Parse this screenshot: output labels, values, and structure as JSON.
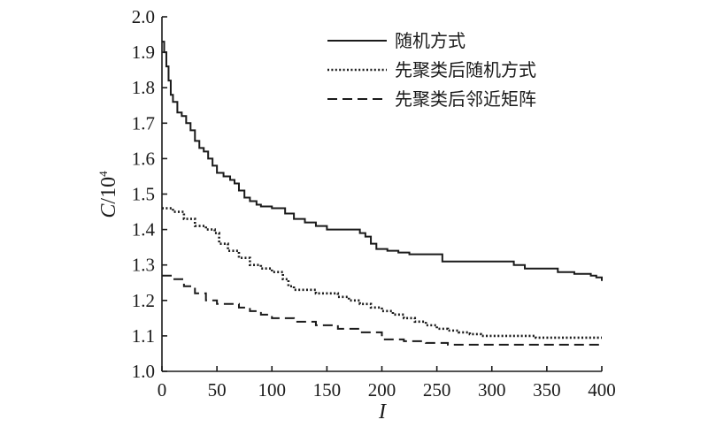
{
  "chart_data": {
    "type": "line",
    "ylabel": {
      "var": "C",
      "unit": "/10",
      "exp": "4"
    },
    "xlabel": "I",
    "xlim": [
      0,
      400
    ],
    "ylim": [
      1.0,
      2.0
    ],
    "x_ticks": [
      "0",
      "50",
      "100",
      "150",
      "200",
      "250",
      "300",
      "350",
      "400"
    ],
    "y_ticks": [
      "1.0",
      "1.1",
      "1.2",
      "1.3",
      "1.4",
      "1.5",
      "1.6",
      "1.7",
      "1.8",
      "1.9",
      "2.0"
    ],
    "grid": false,
    "legend_position": "top-right",
    "series": [
      {
        "name": "随机方式",
        "style": "solid",
        "color": "#1a1a1a",
        "points": [
          [
            0,
            1.93
          ],
          [
            2,
            1.9
          ],
          [
            4,
            1.86
          ],
          [
            6,
            1.82
          ],
          [
            8,
            1.78
          ],
          [
            10,
            1.76
          ],
          [
            14,
            1.73
          ],
          [
            18,
            1.72
          ],
          [
            22,
            1.7
          ],
          [
            26,
            1.68
          ],
          [
            30,
            1.65
          ],
          [
            34,
            1.63
          ],
          [
            38,
            1.62
          ],
          [
            42,
            1.6
          ],
          [
            46,
            1.58
          ],
          [
            50,
            1.56
          ],
          [
            56,
            1.55
          ],
          [
            62,
            1.54
          ],
          [
            66,
            1.53
          ],
          [
            70,
            1.51
          ],
          [
            75,
            1.49
          ],
          [
            80,
            1.48
          ],
          [
            86,
            1.47
          ],
          [
            90,
            1.465
          ],
          [
            100,
            1.46
          ],
          [
            110,
            1.46
          ],
          [
            112,
            1.445
          ],
          [
            120,
            1.43
          ],
          [
            130,
            1.42
          ],
          [
            140,
            1.41
          ],
          [
            150,
            1.4
          ],
          [
            160,
            1.4
          ],
          [
            175,
            1.4
          ],
          [
            180,
            1.39
          ],
          [
            185,
            1.38
          ],
          [
            190,
            1.36
          ],
          [
            195,
            1.345
          ],
          [
            205,
            1.34
          ],
          [
            215,
            1.335
          ],
          [
            225,
            1.33
          ],
          [
            250,
            1.33
          ],
          [
            255,
            1.31
          ],
          [
            280,
            1.31
          ],
          [
            300,
            1.31
          ],
          [
            320,
            1.3
          ],
          [
            330,
            1.29
          ],
          [
            350,
            1.29
          ],
          [
            360,
            1.28
          ],
          [
            375,
            1.275
          ],
          [
            390,
            1.27
          ],
          [
            395,
            1.265
          ],
          [
            400,
            1.255
          ]
        ]
      },
      {
        "name": "先聚类后随机方式",
        "style": "dotted",
        "color": "#1a1a1a",
        "points": [
          [
            0,
            1.46
          ],
          [
            10,
            1.45
          ],
          [
            20,
            1.43
          ],
          [
            30,
            1.41
          ],
          [
            40,
            1.4
          ],
          [
            48,
            1.39
          ],
          [
            52,
            1.36
          ],
          [
            60,
            1.34
          ],
          [
            70,
            1.32
          ],
          [
            80,
            1.3
          ],
          [
            90,
            1.29
          ],
          [
            100,
            1.28
          ],
          [
            110,
            1.26
          ],
          [
            115,
            1.24
          ],
          [
            120,
            1.23
          ],
          [
            130,
            1.23
          ],
          [
            140,
            1.22
          ],
          [
            150,
            1.22
          ],
          [
            160,
            1.21
          ],
          [
            170,
            1.2
          ],
          [
            180,
            1.19
          ],
          [
            190,
            1.18
          ],
          [
            200,
            1.17
          ],
          [
            210,
            1.16
          ],
          [
            220,
            1.15
          ],
          [
            230,
            1.14
          ],
          [
            240,
            1.13
          ],
          [
            250,
            1.12
          ],
          [
            260,
            1.115
          ],
          [
            270,
            1.11
          ],
          [
            280,
            1.105
          ],
          [
            290,
            1.1
          ],
          [
            300,
            1.1
          ],
          [
            320,
            1.1
          ],
          [
            340,
            1.095
          ],
          [
            360,
            1.095
          ],
          [
            380,
            1.095
          ],
          [
            400,
            1.095
          ]
        ]
      },
      {
        "name": "先聚类后邻近矩阵",
        "style": "dashed",
        "color": "#1a1a1a",
        "points": [
          [
            0,
            1.27
          ],
          [
            10,
            1.26
          ],
          [
            20,
            1.24
          ],
          [
            30,
            1.22
          ],
          [
            40,
            1.2
          ],
          [
            50,
            1.19
          ],
          [
            60,
            1.19
          ],
          [
            70,
            1.18
          ],
          [
            80,
            1.17
          ],
          [
            90,
            1.16
          ],
          [
            100,
            1.15
          ],
          [
            120,
            1.14
          ],
          [
            140,
            1.13
          ],
          [
            160,
            1.12
          ],
          [
            180,
            1.11
          ],
          [
            200,
            1.09
          ],
          [
            220,
            1.085
          ],
          [
            240,
            1.08
          ],
          [
            250,
            1.08
          ],
          [
            260,
            1.075
          ],
          [
            280,
            1.075
          ],
          [
            300,
            1.075
          ],
          [
            340,
            1.075
          ],
          [
            400,
            1.075
          ]
        ]
      }
    ]
  }
}
